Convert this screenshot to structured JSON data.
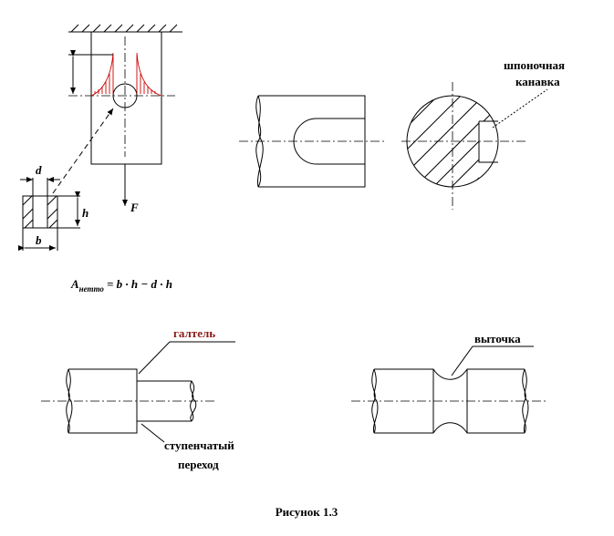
{
  "labels": {
    "d": "d",
    "h": "h",
    "b": "b",
    "force": "F",
    "formula": {
      "symbol": "A",
      "subscript": "нетто",
      "expression": "= b · h − d · h"
    },
    "keyway": [
      "шпоночная",
      "канавка"
    ],
    "fillet": "галтель",
    "groove": "выточка",
    "step": [
      "ступенчатый",
      "переход"
    ]
  },
  "caption": "Рисунок 1.3"
}
